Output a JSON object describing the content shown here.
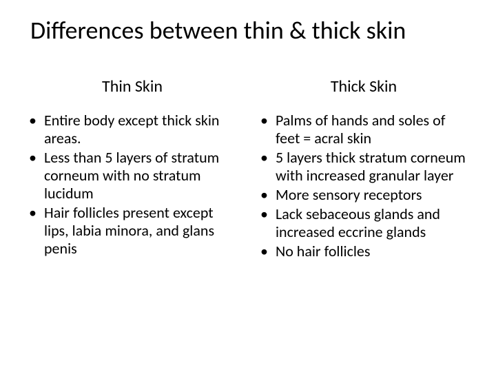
{
  "title": "Differences between thin & thick skin",
  "left": {
    "heading": "Thin Skin",
    "items": [
      "Entire body except thick skin areas.",
      "Less than 5 layers of stratum corneum with no stratum lucidum",
      "Hair follicles present except lips, labia minora, and glans penis"
    ]
  },
  "right": {
    "heading": "Thick Skin",
    "items": [
      "Palms of hands and soles of feet = acral skin",
      "5 layers thick stratum corneum with increased granular layer",
      "More sensory receptors",
      "Lack sebaceous glands and increased eccrine glands",
      "No hair follicles"
    ]
  },
  "style": {
    "background_color": "#ffffff",
    "text_color": "#000000",
    "title_fontsize": 36,
    "heading_fontsize": 24,
    "body_fontsize": 22,
    "font_family": "Calibri"
  }
}
